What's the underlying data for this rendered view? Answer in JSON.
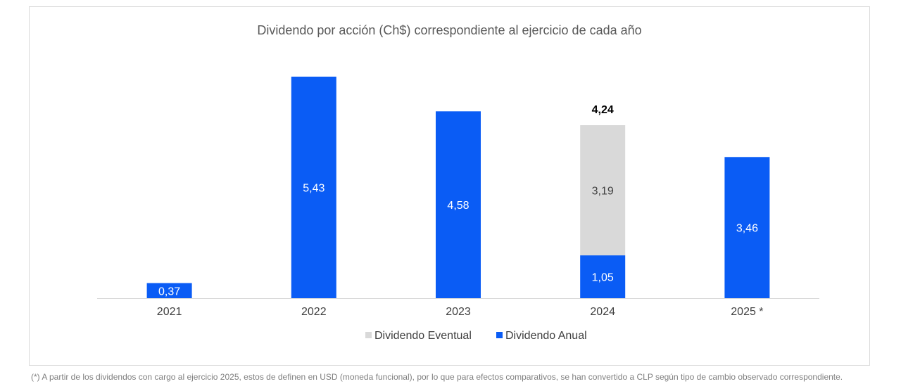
{
  "chart_data": {
    "type": "bar",
    "stacked": true,
    "title": "Dividendo por acción (Ch$) correspondiente al ejercicio de cada año",
    "categories": [
      "2021",
      "2022",
      "2023",
      "2024",
      "2025 *"
    ],
    "series": [
      {
        "name": "Dividendo Anual",
        "color": "#0a5cf5",
        "values": [
          0.37,
          5.43,
          4.58,
          1.05,
          3.46
        ],
        "labels": [
          "0,37",
          "5,43",
          "4,58",
          "1,05",
          "3,46"
        ]
      },
      {
        "name": "Dividendo Eventual",
        "color": "#d9d9d9",
        "values": [
          0,
          0,
          0,
          3.19,
          0
        ],
        "labels": [
          "",
          "",
          "",
          "3,19",
          ""
        ]
      }
    ],
    "totals": [
      {
        "category": "2024",
        "label": "4,24"
      }
    ],
    "legend_order": [
      "Dividendo Eventual",
      "Dividendo Anual"
    ],
    "legend_position": "bottom",
    "grid": false,
    "ylim": [
      0,
      5.6
    ]
  },
  "footnote": "(*) A partir de los dividendos con cargo al ejercicio 2025, estos de definen en USD (moneda funcional), por lo que para efectos comparativos, se han convertido a CLP según tipo de cambio observado correspondiente."
}
